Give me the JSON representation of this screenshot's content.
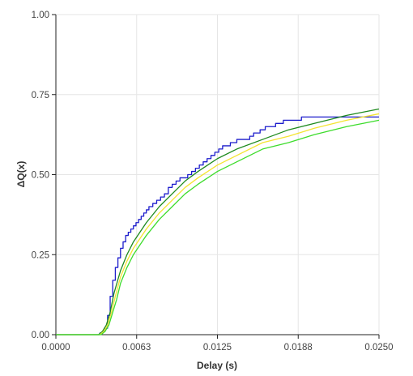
{
  "chart_data": {
    "type": "line",
    "xlabel": "Delay (s)",
    "ylabel": "ΔQ(x)",
    "xlim": [
      0,
      0.025
    ],
    "ylim": [
      0,
      1
    ],
    "grid": true,
    "x_ticks": [
      {
        "value": 0.0,
        "label": "0.0000"
      },
      {
        "value": 0.00625,
        "label": "0.0063"
      },
      {
        "value": 0.0125,
        "label": "0.0125"
      },
      {
        "value": 0.01875,
        "label": "0.0188"
      },
      {
        "value": 0.025,
        "label": "0.0250"
      }
    ],
    "y_ticks": [
      {
        "value": 0.0,
        "label": "0.00"
      },
      {
        "value": 0.25,
        "label": "0.25"
      },
      {
        "value": 0.5,
        "label": "0.50"
      },
      {
        "value": 0.75,
        "label": "0.75"
      },
      {
        "value": 1.0,
        "label": "1.00"
      }
    ],
    "series": [
      {
        "color": "#1c1ccc",
        "step": true,
        "points": [
          [
            0,
            0
          ],
          [
            0.0032,
            0
          ],
          [
            0.0034,
            0.005
          ],
          [
            0.0036,
            0.01
          ],
          [
            0.0038,
            0.02
          ],
          [
            0.004,
            0.06
          ],
          [
            0.0042,
            0.12
          ],
          [
            0.0044,
            0.17
          ],
          [
            0.0046,
            0.21
          ],
          [
            0.0048,
            0.24
          ],
          [
            0.005,
            0.27
          ],
          [
            0.0052,
            0.29
          ],
          [
            0.0054,
            0.31
          ],
          [
            0.0056,
            0.32
          ],
          [
            0.0058,
            0.33
          ],
          [
            0.006,
            0.34
          ],
          [
            0.0062,
            0.35
          ],
          [
            0.0064,
            0.36
          ],
          [
            0.0066,
            0.37
          ],
          [
            0.0068,
            0.38
          ],
          [
            0.007,
            0.39
          ],
          [
            0.0072,
            0.4
          ],
          [
            0.0075,
            0.41
          ],
          [
            0.0078,
            0.42
          ],
          [
            0.0081,
            0.43
          ],
          [
            0.0084,
            0.44
          ],
          [
            0.0087,
            0.46
          ],
          [
            0.009,
            0.47
          ],
          [
            0.0093,
            0.48
          ],
          [
            0.0096,
            0.49
          ],
          [
            0.0102,
            0.5
          ],
          [
            0.0105,
            0.51
          ],
          [
            0.0108,
            0.52
          ],
          [
            0.0111,
            0.53
          ],
          [
            0.0114,
            0.54
          ],
          [
            0.0117,
            0.55
          ],
          [
            0.012,
            0.56
          ],
          [
            0.0123,
            0.57
          ],
          [
            0.0126,
            0.58
          ],
          [
            0.0129,
            0.59
          ],
          [
            0.0135,
            0.6
          ],
          [
            0.014,
            0.61
          ],
          [
            0.015,
            0.62
          ],
          [
            0.0153,
            0.63
          ],
          [
            0.0158,
            0.64
          ],
          [
            0.0162,
            0.65
          ],
          [
            0.017,
            0.66
          ],
          [
            0.0176,
            0.67
          ],
          [
            0.019,
            0.68
          ],
          [
            0.025,
            0.68
          ]
        ]
      },
      {
        "color": "#1e8a1e",
        "points": [
          [
            0,
            0
          ],
          [
            0.0033,
            0
          ],
          [
            0.0036,
            0.01
          ],
          [
            0.0039,
            0.03
          ],
          [
            0.0042,
            0.07
          ],
          [
            0.0045,
            0.13
          ],
          [
            0.005,
            0.2
          ],
          [
            0.0055,
            0.25
          ],
          [
            0.006,
            0.29
          ],
          [
            0.0065,
            0.32
          ],
          [
            0.007,
            0.35
          ],
          [
            0.008,
            0.4
          ],
          [
            0.009,
            0.44
          ],
          [
            0.01,
            0.48
          ],
          [
            0.011,
            0.51
          ],
          [
            0.0125,
            0.55
          ],
          [
            0.014,
            0.58
          ],
          [
            0.016,
            0.61
          ],
          [
            0.018,
            0.64
          ],
          [
            0.02,
            0.66
          ],
          [
            0.0225,
            0.685
          ],
          [
            0.025,
            0.705
          ]
        ]
      },
      {
        "color": "#f4e431",
        "points": [
          [
            0,
            0
          ],
          [
            0.0034,
            0
          ],
          [
            0.0037,
            0.01
          ],
          [
            0.004,
            0.03
          ],
          [
            0.0043,
            0.07
          ],
          [
            0.0046,
            0.12
          ],
          [
            0.005,
            0.18
          ],
          [
            0.0055,
            0.23
          ],
          [
            0.006,
            0.27
          ],
          [
            0.0065,
            0.3
          ],
          [
            0.007,
            0.33
          ],
          [
            0.008,
            0.38
          ],
          [
            0.009,
            0.42
          ],
          [
            0.01,
            0.46
          ],
          [
            0.011,
            0.49
          ],
          [
            0.0125,
            0.53
          ],
          [
            0.014,
            0.56
          ],
          [
            0.016,
            0.6
          ],
          [
            0.018,
            0.62
          ],
          [
            0.02,
            0.645
          ],
          [
            0.0225,
            0.67
          ],
          [
            0.025,
            0.69
          ]
        ]
      },
      {
        "color": "#3ddc2c",
        "points": [
          [
            0,
            0
          ],
          [
            0.0035,
            0
          ],
          [
            0.0038,
            0.01
          ],
          [
            0.0041,
            0.03
          ],
          [
            0.0044,
            0.07
          ],
          [
            0.0047,
            0.11
          ],
          [
            0.005,
            0.16
          ],
          [
            0.0055,
            0.21
          ],
          [
            0.006,
            0.25
          ],
          [
            0.0065,
            0.28
          ],
          [
            0.007,
            0.31
          ],
          [
            0.008,
            0.36
          ],
          [
            0.009,
            0.4
          ],
          [
            0.01,
            0.44
          ],
          [
            0.011,
            0.47
          ],
          [
            0.0125,
            0.51
          ],
          [
            0.014,
            0.54
          ],
          [
            0.016,
            0.58
          ],
          [
            0.018,
            0.6
          ],
          [
            0.02,
            0.625
          ],
          [
            0.0225,
            0.65
          ],
          [
            0.025,
            0.67
          ]
        ]
      }
    ]
  }
}
